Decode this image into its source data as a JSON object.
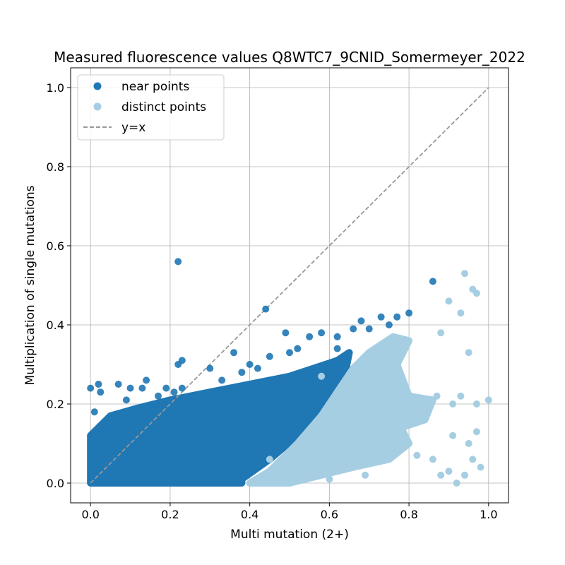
{
  "chart_data": {
    "type": "scatter",
    "title": "Measured fluorescence values Q8WTC7_9CNID_Somermeyer_2022",
    "xlabel": "Multi mutation (2+)",
    "ylabel": "Multiplication of single mutations",
    "xlim": [
      -0.05,
      1.05
    ],
    "ylim": [
      -0.05,
      1.05
    ],
    "xticks": [
      "0.0",
      "0.2",
      "0.4",
      "0.6",
      "0.8",
      "1.0"
    ],
    "yticks": [
      "0.0",
      "0.2",
      "0.4",
      "0.6",
      "0.8",
      "1.0"
    ],
    "xtick_values": [
      0.0,
      0.2,
      0.4,
      0.6,
      0.8,
      1.0
    ],
    "ytick_values": [
      0.0,
      0.2,
      0.4,
      0.6,
      0.8,
      1.0
    ],
    "grid": true,
    "legend_position": "top-left",
    "series": [
      {
        "name": "near points",
        "color": "#1f77b4",
        "points": [
          [
            0.0,
            0.24
          ],
          [
            0.01,
            0.18
          ],
          [
            0.02,
            0.25
          ],
          [
            0.025,
            0.23
          ],
          [
            0.01,
            0.13
          ],
          [
            0.07,
            0.25
          ],
          [
            0.1,
            0.24
          ],
          [
            0.13,
            0.24
          ],
          [
            0.14,
            0.26
          ],
          [
            0.19,
            0.24
          ],
          [
            0.21,
            0.23
          ],
          [
            0.23,
            0.24
          ],
          [
            0.22,
            0.3
          ],
          [
            0.23,
            0.31
          ],
          [
            0.22,
            0.56
          ],
          [
            0.3,
            0.29
          ],
          [
            0.44,
            0.44
          ],
          [
            0.49,
            0.38
          ],
          [
            0.52,
            0.34
          ],
          [
            0.55,
            0.37
          ],
          [
            0.58,
            0.38
          ],
          [
            0.62,
            0.37
          ],
          [
            0.66,
            0.39
          ],
          [
            0.7,
            0.39
          ],
          [
            0.73,
            0.42
          ],
          [
            0.77,
            0.42
          ],
          [
            0.8,
            0.43
          ],
          [
            0.86,
            0.51
          ],
          [
            0.33,
            0.26
          ],
          [
            0.38,
            0.28
          ],
          [
            0.4,
            0.3
          ],
          [
            0.45,
            0.32
          ],
          [
            0.36,
            0.33
          ],
          [
            0.09,
            0.21
          ],
          [
            0.17,
            0.22
          ],
          [
            0.62,
            0.34
          ],
          [
            0.68,
            0.41
          ],
          [
            0.75,
            0.4
          ],
          [
            0.42,
            0.29
          ],
          [
            0.5,
            0.33
          ]
        ]
      },
      {
        "name": "distinct points",
        "color": "#a6cee3",
        "points": [
          [
            0.88,
            0.38
          ],
          [
            0.9,
            0.46
          ],
          [
            0.93,
            0.43
          ],
          [
            0.94,
            0.53
          ],
          [
            0.96,
            0.49
          ],
          [
            0.97,
            0.48
          ],
          [
            0.95,
            0.33
          ],
          [
            0.87,
            0.22
          ],
          [
            0.91,
            0.2
          ],
          [
            0.93,
            0.22
          ],
          [
            0.97,
            0.2
          ],
          [
            1.0,
            0.21
          ],
          [
            0.84,
            0.19
          ],
          [
            0.8,
            0.21
          ],
          [
            0.86,
            0.06
          ],
          [
            0.88,
            0.02
          ],
          [
            0.9,
            0.03
          ],
          [
            0.92,
            0.0
          ],
          [
            0.94,
            0.02
          ],
          [
            0.96,
            0.06
          ],
          [
            0.98,
            0.04
          ],
          [
            0.97,
            0.13
          ],
          [
            0.91,
            0.12
          ],
          [
            0.95,
            0.1
          ],
          [
            0.82,
            0.07
          ],
          [
            0.78,
            0.12
          ],
          [
            0.74,
            0.09
          ],
          [
            0.69,
            0.02
          ],
          [
            0.64,
            0.06
          ],
          [
            0.6,
            0.01
          ],
          [
            0.55,
            0.02
          ],
          [
            0.5,
            0.04
          ],
          [
            0.45,
            0.06
          ],
          [
            0.66,
            0.29
          ],
          [
            0.7,
            0.33
          ],
          [
            0.68,
            0.2
          ],
          [
            0.6,
            0.2
          ],
          [
            0.58,
            0.17
          ],
          [
            0.63,
            0.12
          ],
          [
            0.58,
            0.27
          ]
        ]
      }
    ],
    "reference_line": {
      "name": "y=x",
      "color": "#999999",
      "x": [
        0.0,
        1.0
      ],
      "y": [
        0.0,
        1.0
      ]
    }
  }
}
